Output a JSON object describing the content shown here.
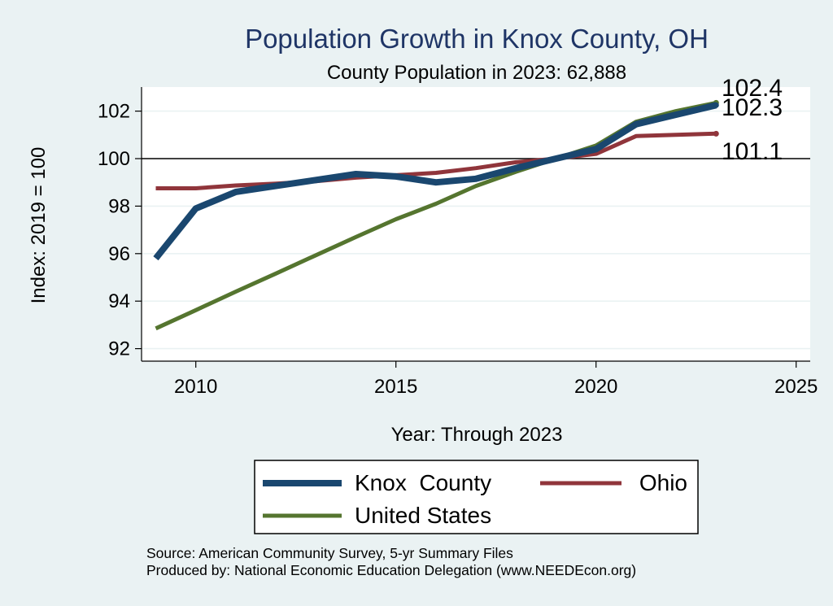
{
  "chart_data": {
    "type": "line",
    "title": "Population Growth in Knox County, OH",
    "subtitle": "County Population in 2023: 62,888",
    "xlabel": "Year: Through 2023",
    "ylabel": "Index: 2019 = 100",
    "xlim": [
      2009,
      2025
    ],
    "ylim": [
      91.5,
      103
    ],
    "xticks": [
      2010,
      2015,
      2020,
      2025
    ],
    "yticks": [
      92,
      94,
      96,
      98,
      100,
      102
    ],
    "reference_line": 100,
    "grid": true,
    "legend_position": "bottom",
    "x": [
      2009,
      2010,
      2011,
      2012,
      2013,
      2014,
      2015,
      2016,
      2017,
      2018,
      2019,
      2020,
      2021,
      2022,
      2023
    ],
    "series": [
      {
        "name": "Knox  County",
        "color": "#1a476f",
        "values": [
          95.8,
          97.9,
          98.6,
          98.85,
          99.1,
          99.35,
          99.25,
          99.0,
          99.15,
          99.6,
          100.0,
          100.4,
          101.45,
          101.85,
          102.25
        ],
        "end_label": "102.3"
      },
      {
        "name": "Ohio",
        "color": "#90353b",
        "values": [
          98.75,
          98.75,
          98.87,
          98.95,
          99.05,
          99.2,
          99.3,
          99.4,
          99.6,
          99.85,
          100.0,
          100.2,
          100.95,
          101.0,
          101.05
        ],
        "end_label": "101.1"
      },
      {
        "name": "United States",
        "color": "#55752f",
        "values": [
          92.85,
          93.62,
          94.4,
          95.16,
          95.93,
          96.7,
          97.45,
          98.1,
          98.85,
          99.45,
          100.0,
          100.55,
          101.55,
          102.0,
          102.35
        ],
        "end_label": "102.4"
      }
    ]
  },
  "footer": {
    "source": "Source: American Community Survey, 5-yr Summary Files",
    "produced_by": "Produced by: National Economic Education Delegation (www.NEEDEcon.org)"
  }
}
